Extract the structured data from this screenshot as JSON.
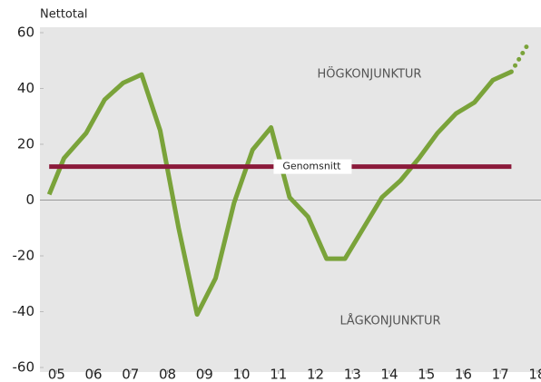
{
  "chart_data": {
    "type": "line",
    "y_label": "Nettotal",
    "annotations": [
      "HÖGKONJUNKTUR",
      "LÅGKONJUNKTUR"
    ],
    "xlim": [
      2004.55,
      2018.1
    ],
    "xticks": [
      {
        "value": 2005,
        "label": "05"
      },
      {
        "value": 2006,
        "label": "06"
      },
      {
        "value": 2007,
        "label": "07"
      },
      {
        "value": 2008,
        "label": "08"
      },
      {
        "value": 2009,
        "label": "09"
      },
      {
        "value": 2010,
        "label": "10"
      },
      {
        "value": 2011,
        "label": "11"
      },
      {
        "value": 2012,
        "label": "12"
      },
      {
        "value": 2013,
        "label": "13"
      },
      {
        "value": 2014,
        "label": "14"
      },
      {
        "value": 2015,
        "label": "15"
      },
      {
        "value": 2016,
        "label": "16"
      },
      {
        "value": 2017,
        "label": "17"
      },
      {
        "value": 2018,
        "label": "18"
      }
    ],
    "ylim": [
      -60,
      60
    ],
    "yticks": [
      -60,
      -40,
      -20,
      0,
      20,
      40,
      60
    ],
    "series": [
      {
        "color": "#7aa33a",
        "x": [
          2004.8,
          2005.2,
          2005.8,
          2006.3,
          2006.8,
          2007.3,
          2007.8,
          2008.3,
          2008.8,
          2009.3,
          2009.8,
          2010.3,
          2010.8,
          2011.3,
          2011.8,
          2012.3,
          2012.8,
          2013.3,
          2013.8,
          2014.3,
          2014.8,
          2015.3,
          2015.8,
          2016.3,
          2016.8,
          2017.3
        ],
        "values": [
          2,
          15,
          24,
          36,
          42,
          45,
          25,
          -10,
          -41,
          -28,
          -1,
          18,
          26,
          1,
          -6,
          -21,
          -21,
          -10,
          1,
          7,
          15,
          24,
          31,
          35,
          43,
          46
        ]
      },
      {
        "name": "Genomsnitt",
        "color": "#8b1a3a",
        "x": [
          2004.8,
          2017.3
        ],
        "values": [
          12,
          12
        ]
      },
      {
        "color": "#7aa33a",
        "dashed": true,
        "x": [
          2017.3,
          2017.8
        ],
        "values": [
          46,
          57
        ]
      }
    ]
  }
}
